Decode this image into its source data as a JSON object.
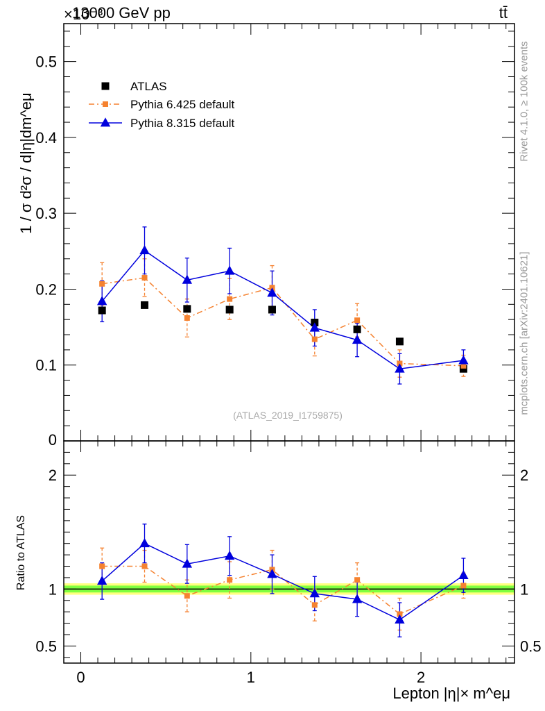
{
  "header": {
    "title_left": "13000 GeV pp",
    "title_right": "tt̄",
    "y_exponent": "×10⁻³"
  },
  "side_labels": {
    "rivet": "Rivet 4.1.0, ≥ 100k events",
    "mcplots": "mcplots.cern.ch [arXiv:2401.10621]"
  },
  "watermark": "(ATLAS_2019_I1759875)",
  "axes": {
    "ylabel_main": "1 / σ  d²σ / d|η|dm^eμ",
    "ylabel_ratio": "Ratio to ATLAS",
    "xlabel": "Lepton |η|× m^eμ"
  },
  "colors": {
    "atlas": "#000000",
    "pythia6": "#f58230",
    "pythia8": "#0000dd",
    "band_inner": "#7fff3f",
    "band_outer": "#ffff7f"
  },
  "chart_data": [
    {
      "type": "line",
      "panel": "main",
      "xlim": [
        -0.1,
        2.55
      ],
      "ylim": [
        0,
        0.55
      ],
      "yticks": [
        0.1,
        0.2,
        0.3,
        0.4,
        0.5
      ],
      "ytick_labels": [
        "0.1",
        "0.2",
        "0.3",
        "0.4",
        "0.5"
      ],
      "y_zero_label": "0",
      "legend": [
        "ATLAS",
        "Pythia 6.425 default",
        "Pythia 8.315 default"
      ],
      "legend_position": "top-left",
      "x": [
        0.125,
        0.375,
        0.625,
        0.875,
        1.125,
        1.375,
        1.625,
        1.875,
        2.25
      ],
      "series": [
        {
          "name": "ATLAS",
          "values": [
            0.172,
            0.179,
            0.174,
            0.173,
            0.173,
            0.156,
            0.147,
            0.131,
            0.095
          ]
        },
        {
          "name": "Pythia 6.425 default",
          "values": [
            0.207,
            0.215,
            0.162,
            0.187,
            0.202,
            0.134,
            0.159,
            0.102,
            0.099
          ],
          "errors": [
            0.028,
            0.025,
            0.025,
            0.027,
            0.029,
            0.022,
            0.022,
            0.018,
            0.014
          ]
        },
        {
          "name": "Pythia 8.315 default",
          "values": [
            0.184,
            0.251,
            0.212,
            0.224,
            0.195,
            0.149,
            0.133,
            0.095,
            0.106
          ],
          "errors": [
            0.027,
            0.031,
            0.029,
            0.03,
            0.029,
            0.024,
            0.022,
            0.02,
            0.014
          ]
        }
      ]
    },
    {
      "type": "line",
      "panel": "ratio",
      "xlim": [
        -0.1,
        2.55
      ],
      "ylim": [
        0.35,
        2.3
      ],
      "yticks": [
        0.5,
        1,
        2
      ],
      "ytick_labels": [
        "0.5",
        "1",
        "2"
      ],
      "xticks": [
        0,
        1,
        2
      ],
      "xtick_labels": [
        "0",
        "1",
        "2"
      ],
      "x": [
        0.125,
        0.375,
        0.625,
        0.875,
        1.125,
        1.375,
        1.625,
        1.875,
        2.25
      ],
      "band": {
        "inner": [
          0.97,
          1.03
        ],
        "outer": [
          0.95,
          1.05
        ]
      },
      "series": [
        {
          "name": "Pythia 6.425 default",
          "values": [
            1.2,
            1.2,
            0.94,
            1.08,
            1.17,
            0.86,
            1.08,
            0.78,
            1.03
          ],
          "errors": [
            0.16,
            0.14,
            0.14,
            0.16,
            0.17,
            0.14,
            0.15,
            0.14,
            0.11
          ]
        },
        {
          "name": "Pythia 8.315 default",
          "values": [
            1.07,
            1.4,
            1.22,
            1.29,
            1.13,
            0.96,
            0.91,
            0.73,
            1.12
          ],
          "errors": [
            0.16,
            0.17,
            0.17,
            0.17,
            0.17,
            0.15,
            0.15,
            0.15,
            0.15
          ]
        }
      ]
    }
  ]
}
